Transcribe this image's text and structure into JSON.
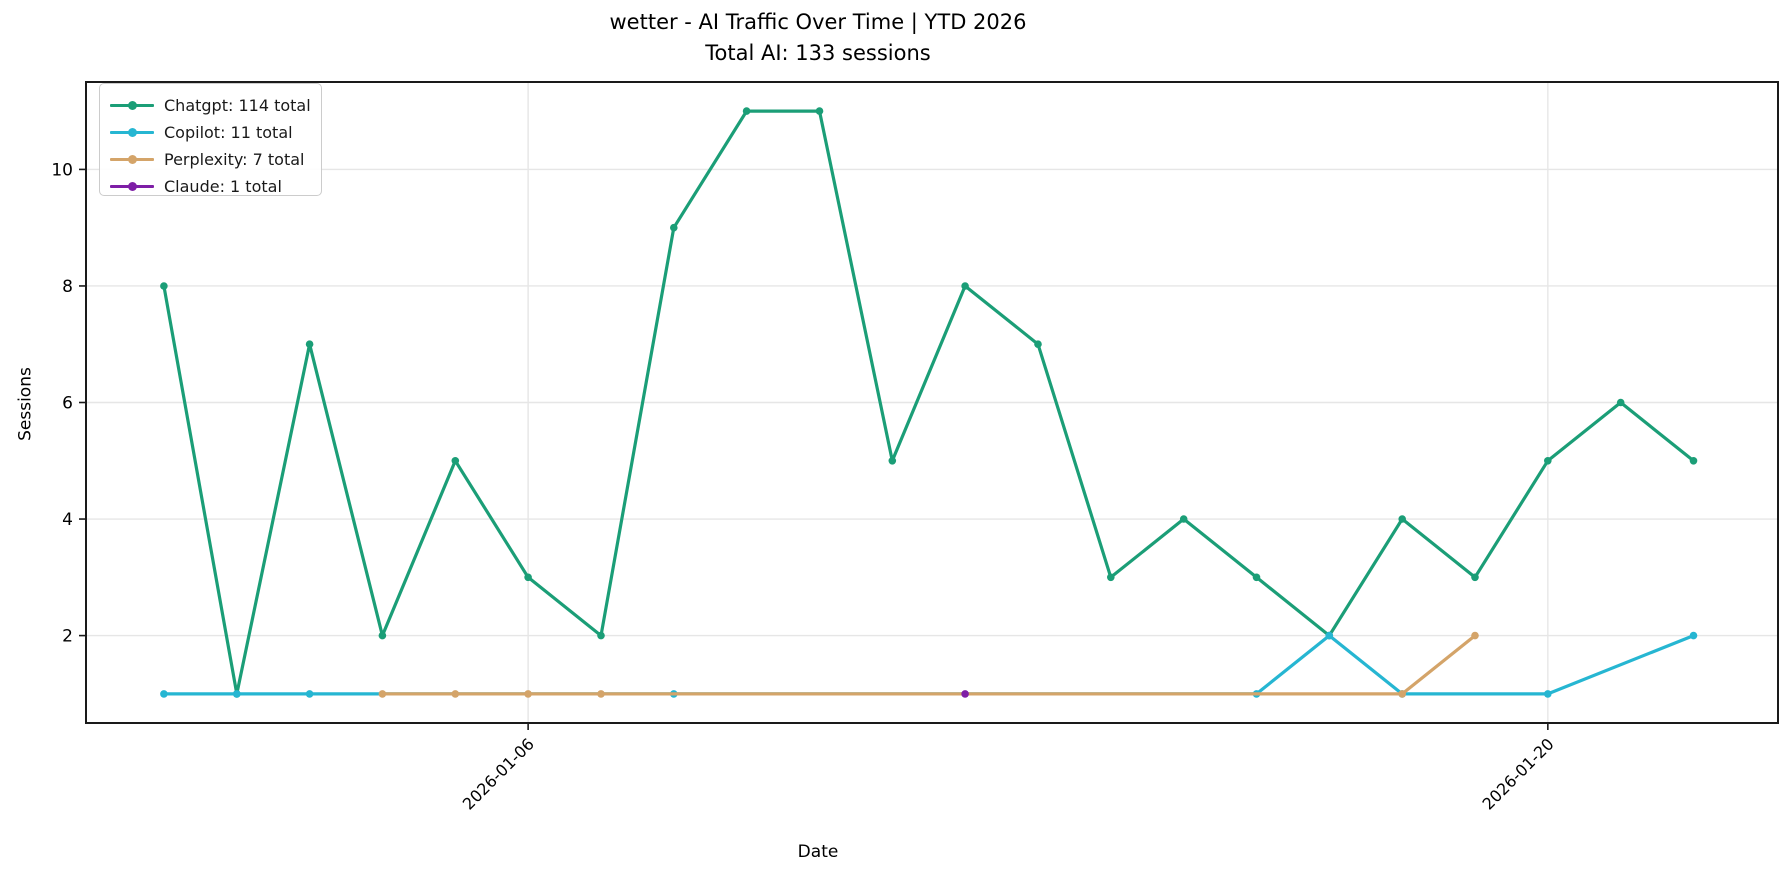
{
  "chart_data": {
    "type": "line",
    "title": "wetter - AI Traffic Over Time | YTD 2026",
    "subtitle": "Total AI: 133 sessions",
    "xlabel": "Date",
    "ylabel": "Sessions",
    "total_sessions": 133,
    "x_unit": "day of January 2026",
    "xlim_days": [
      -0.07,
      23.16
    ],
    "ylim": [
      0.5,
      11.5
    ],
    "grid": true,
    "legend_position": "upper left",
    "y_ticks": [
      2,
      4,
      6,
      8,
      10
    ],
    "x_ticks": [
      {
        "label": "2026-01-06",
        "day": 6
      },
      {
        "label": "2026-01-20",
        "day": 20
      }
    ],
    "colors": {
      "grid": "#e6e6e6",
      "spine": "#1a1a1a",
      "text": "#000000",
      "legend_border": "#cccccc"
    },
    "series": [
      {
        "name": "Chatgpt",
        "legend": "Chatgpt: 114 total",
        "total": 114,
        "color": "#1b9e77",
        "points": [
          [
            1,
            8
          ],
          [
            2,
            1
          ],
          [
            3,
            7
          ],
          [
            4,
            2
          ],
          [
            5,
            5
          ],
          [
            6,
            3
          ],
          [
            7,
            2
          ],
          [
            8,
            9
          ],
          [
            9,
            11
          ],
          [
            10,
            11
          ],
          [
            11,
            5
          ],
          [
            12,
            8
          ],
          [
            13,
            7
          ],
          [
            14,
            3
          ],
          [
            15,
            4
          ],
          [
            16,
            3
          ],
          [
            17,
            2
          ],
          [
            18,
            4
          ],
          [
            19,
            3
          ],
          [
            20,
            5
          ],
          [
            21,
            6
          ],
          [
            22,
            5
          ]
        ]
      },
      {
        "name": "Copilot",
        "legend": "Copilot: 11 total",
        "total": 11,
        "color": "#26b6d2",
        "points": [
          [
            1,
            1
          ],
          [
            2,
            1
          ],
          [
            3,
            1
          ],
          [
            8,
            1
          ],
          [
            16,
            1
          ],
          [
            17,
            2
          ],
          [
            18,
            1
          ],
          [
            20,
            1
          ],
          [
            22,
            2
          ]
        ]
      },
      {
        "name": "Perplexity",
        "legend": "Perplexity: 7 total",
        "total": 7,
        "color": "#d4a469",
        "points": [
          [
            4,
            1
          ],
          [
            5,
            1
          ],
          [
            6,
            1
          ],
          [
            7,
            1
          ],
          [
            18,
            1
          ],
          [
            19,
            2
          ]
        ]
      },
      {
        "name": "Claude",
        "legend": "Claude: 1 total",
        "total": 1,
        "color": "#7e1ea6",
        "points": [
          [
            12,
            1
          ]
        ]
      }
    ]
  }
}
